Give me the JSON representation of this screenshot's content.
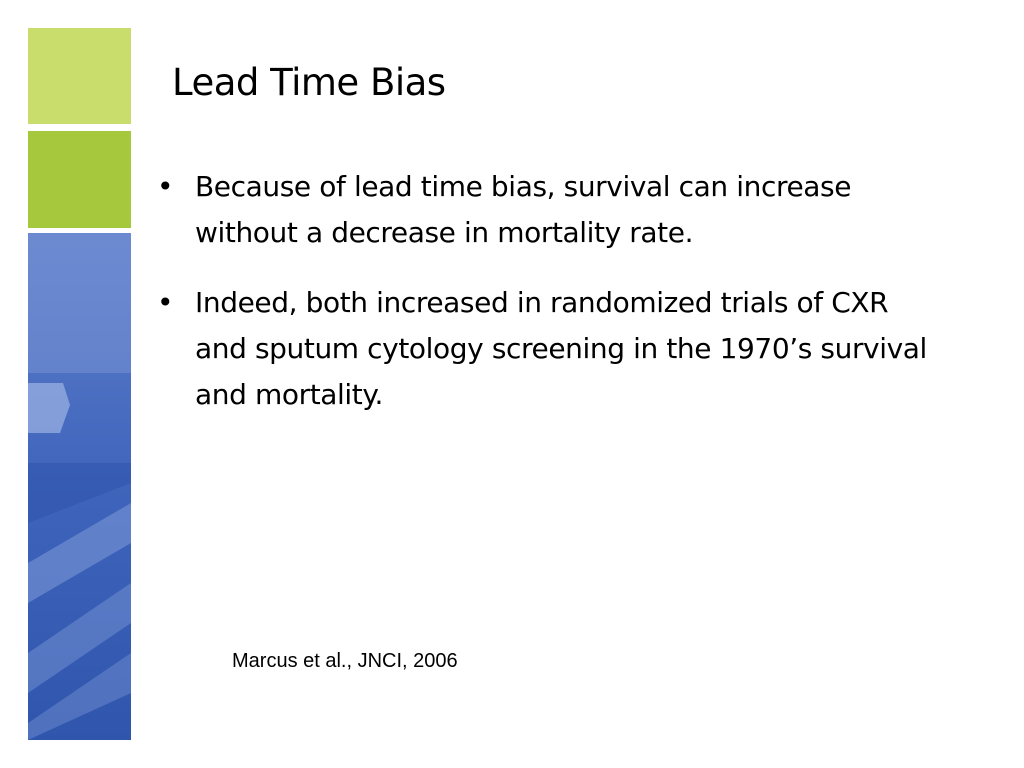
{
  "slide": {
    "title": "Lead Time Bias",
    "bullets": [
      {
        "bullet_glyph": "•",
        "text": "Because of lead time bias, survival can increase without a decrease in mortality rate."
      },
      {
        "bullet_glyph": "•",
        "text": "Indeed, both increased in randomized trials of CXR and sputum cytology screening in the 1970’s survival and mortality."
      }
    ],
    "citation": "Marcus et al., JNCI, 2006"
  },
  "theme": {
    "accent_lime": "#c9dd6c",
    "accent_green": "#a5c83c",
    "accent_blue": "#3e63b8",
    "accent_blue_light": "#7d9ad6"
  }
}
